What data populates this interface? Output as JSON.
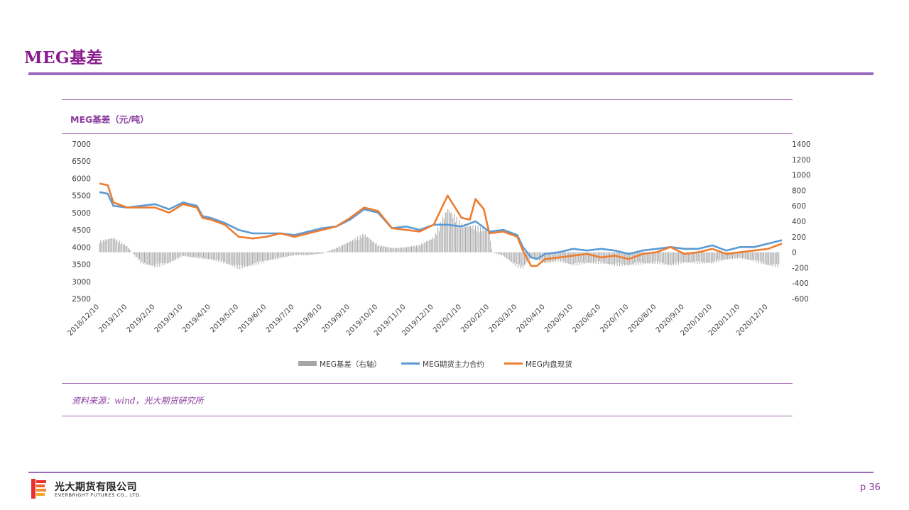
{
  "slide": {
    "title": "MEG基差",
    "source": "资料来源：wind，光大期货研究所",
    "page": "p 36"
  },
  "footer": {
    "company_cn": "光大期货有限公司",
    "company_en": "EVERBRIGHT FUTURES CO., LTD."
  },
  "colors": {
    "accent": "#9b6bc0",
    "title": "#8a1a8f",
    "basis": "#a6a6a6",
    "futures": "#5b9bd5",
    "spot": "#ed7d31"
  },
  "chart_data": {
    "type": "line",
    "title": "MEG基差（元/吨）",
    "x_ticks": [
      "2018/12/10",
      "2019/1/10",
      "2019/2/10",
      "2019/3/10",
      "2019/4/10",
      "2019/5/10",
      "2019/6/10",
      "2019/7/10",
      "2019/8/10",
      "2019/9/10",
      "2019/10/10",
      "2019/11/10",
      "2019/12/10",
      "2020/1/10",
      "2020/2/10",
      "2020/3/10",
      "2020/4/10",
      "2020/5/10",
      "2020/6/10",
      "2020/7/10",
      "2020/8/10",
      "2020/9/10",
      "2020/10/10",
      "2020/11/10",
      "2020/12/10"
    ],
    "ylim_left": [
      2500,
      7000
    ],
    "yticks_left": [
      2500,
      3000,
      3500,
      4000,
      4500,
      5000,
      5500,
      6000,
      6500,
      7000
    ],
    "ylim_right": [
      -600,
      1400
    ],
    "yticks_right": [
      -600,
      -400,
      -200,
      0,
      200,
      400,
      600,
      800,
      1000,
      1200,
      1400
    ],
    "legend_position": "bottom",
    "series": [
      {
        "name": "MEG基差（右轴）",
        "type": "bar",
        "axis": "right",
        "points": [
          [
            0,
            150
          ],
          [
            0.5,
            200
          ],
          [
            1,
            80
          ],
          [
            1.5,
            -150
          ],
          [
            2,
            -200
          ],
          [
            2.5,
            -150
          ],
          [
            3,
            -50
          ],
          [
            3.5,
            -80
          ],
          [
            4,
            -100
          ],
          [
            4.5,
            -150
          ],
          [
            5,
            -220
          ],
          [
            5.5,
            -180
          ],
          [
            6,
            -120
          ],
          [
            6.5,
            -80
          ],
          [
            7,
            -40
          ],
          [
            7.5,
            -40
          ],
          [
            8,
            -20
          ],
          [
            8.5,
            60
          ],
          [
            9,
            150
          ],
          [
            9.5,
            250
          ],
          [
            10,
            100
          ],
          [
            10.5,
            60
          ],
          [
            11,
            70
          ],
          [
            11.5,
            100
          ],
          [
            12,
            200
          ],
          [
            12.5,
            600
          ],
          [
            13,
            380
          ],
          [
            13.5,
            350
          ],
          [
            13.99,
            300
          ],
          [
            14.1,
            0
          ],
          [
            14.5,
            -50
          ],
          [
            15,
            -200
          ],
          [
            15.2,
            -220
          ],
          [
            15.5,
            -60
          ],
          [
            16,
            -150
          ],
          [
            16.5,
            -120
          ],
          [
            17,
            -180
          ],
          [
            17.5,
            -150
          ],
          [
            18,
            -150
          ],
          [
            18.5,
            -180
          ],
          [
            19,
            -180
          ],
          [
            19.5,
            -160
          ],
          [
            20,
            -150
          ],
          [
            20.5,
            -180
          ],
          [
            21,
            -140
          ],
          [
            21.5,
            -150
          ],
          [
            22,
            -150
          ],
          [
            22.5,
            -100
          ],
          [
            23,
            -80
          ],
          [
            23.5,
            -120
          ],
          [
            24,
            -180
          ],
          [
            24.4,
            -200
          ]
        ]
      },
      {
        "name": "MEG期货主力合约",
        "type": "line",
        "axis": "left",
        "points": [
          [
            0,
            5600
          ],
          [
            0.3,
            5550
          ],
          [
            0.5,
            5200
          ],
          [
            1,
            5150
          ],
          [
            1.5,
            5200
          ],
          [
            2,
            5250
          ],
          [
            2.5,
            5100
          ],
          [
            3,
            5300
          ],
          [
            3.5,
            5200
          ],
          [
            3.7,
            4900
          ],
          [
            4,
            4850
          ],
          [
            4.5,
            4700
          ],
          [
            5,
            4500
          ],
          [
            5.5,
            4400
          ],
          [
            6,
            4400
          ],
          [
            6.5,
            4400
          ],
          [
            7,
            4350
          ],
          [
            7.5,
            4450
          ],
          [
            8,
            4550
          ],
          [
            8.5,
            4600
          ],
          [
            9,
            4800
          ],
          [
            9.5,
            5100
          ],
          [
            10,
            5000
          ],
          [
            10.5,
            4550
          ],
          [
            11,
            4600
          ],
          [
            11.5,
            4500
          ],
          [
            12,
            4650
          ],
          [
            12.5,
            4650
          ],
          [
            13,
            4600
          ],
          [
            13.5,
            4750
          ],
          [
            14,
            4450
          ],
          [
            14.5,
            4500
          ],
          [
            15,
            4350
          ],
          [
            15.2,
            4000
          ],
          [
            15.5,
            3700
          ],
          [
            15.7,
            3650
          ],
          [
            16,
            3800
          ],
          [
            16.5,
            3850
          ],
          [
            17,
            3950
          ],
          [
            17.5,
            3900
          ],
          [
            18,
            3950
          ],
          [
            18.5,
            3900
          ],
          [
            19,
            3800
          ],
          [
            19.5,
            3900
          ],
          [
            20,
            3950
          ],
          [
            20.5,
            4000
          ],
          [
            21,
            3950
          ],
          [
            21.5,
            3950
          ],
          [
            22,
            4050
          ],
          [
            22.5,
            3900
          ],
          [
            23,
            4000
          ],
          [
            23.5,
            4000
          ],
          [
            24,
            4100
          ],
          [
            24.5,
            4200
          ]
        ]
      },
      {
        "name": "MEG内盘现货",
        "type": "line",
        "axis": "left",
        "points": [
          [
            0,
            5850
          ],
          [
            0.3,
            5800
          ],
          [
            0.5,
            5300
          ],
          [
            1,
            5150
          ],
          [
            1.5,
            5150
          ],
          [
            2,
            5150
          ],
          [
            2.5,
            5000
          ],
          [
            3,
            5250
          ],
          [
            3.5,
            5150
          ],
          [
            3.7,
            4850
          ],
          [
            4,
            4800
          ],
          [
            4.5,
            4650
          ],
          [
            5,
            4300
          ],
          [
            5.5,
            4250
          ],
          [
            6,
            4300
          ],
          [
            6.5,
            4400
          ],
          [
            7,
            4300
          ],
          [
            7.5,
            4400
          ],
          [
            8,
            4500
          ],
          [
            8.5,
            4600
          ],
          [
            9,
            4850
          ],
          [
            9.5,
            5150
          ],
          [
            10,
            5050
          ],
          [
            10.5,
            4550
          ],
          [
            11,
            4500
          ],
          [
            11.5,
            4450
          ],
          [
            12,
            4650
          ],
          [
            12.5,
            5500
          ],
          [
            13,
            4850
          ],
          [
            13.3,
            4800
          ],
          [
            13.5,
            5400
          ],
          [
            13.8,
            5100
          ],
          [
            14,
            4400
          ],
          [
            14.5,
            4450
          ],
          [
            15,
            4300
          ],
          [
            15.2,
            3900
          ],
          [
            15.5,
            3450
          ],
          [
            15.7,
            3450
          ],
          [
            16,
            3650
          ],
          [
            16.5,
            3700
          ],
          [
            17,
            3750
          ],
          [
            17.5,
            3800
          ],
          [
            18,
            3700
          ],
          [
            18.5,
            3750
          ],
          [
            19,
            3650
          ],
          [
            19.5,
            3800
          ],
          [
            20,
            3850
          ],
          [
            20.5,
            4000
          ],
          [
            21,
            3800
          ],
          [
            21.5,
            3850
          ],
          [
            22,
            3950
          ],
          [
            22.5,
            3800
          ],
          [
            23,
            3850
          ],
          [
            23.5,
            3900
          ],
          [
            24,
            3950
          ],
          [
            24.5,
            4100
          ]
        ]
      }
    ]
  }
}
